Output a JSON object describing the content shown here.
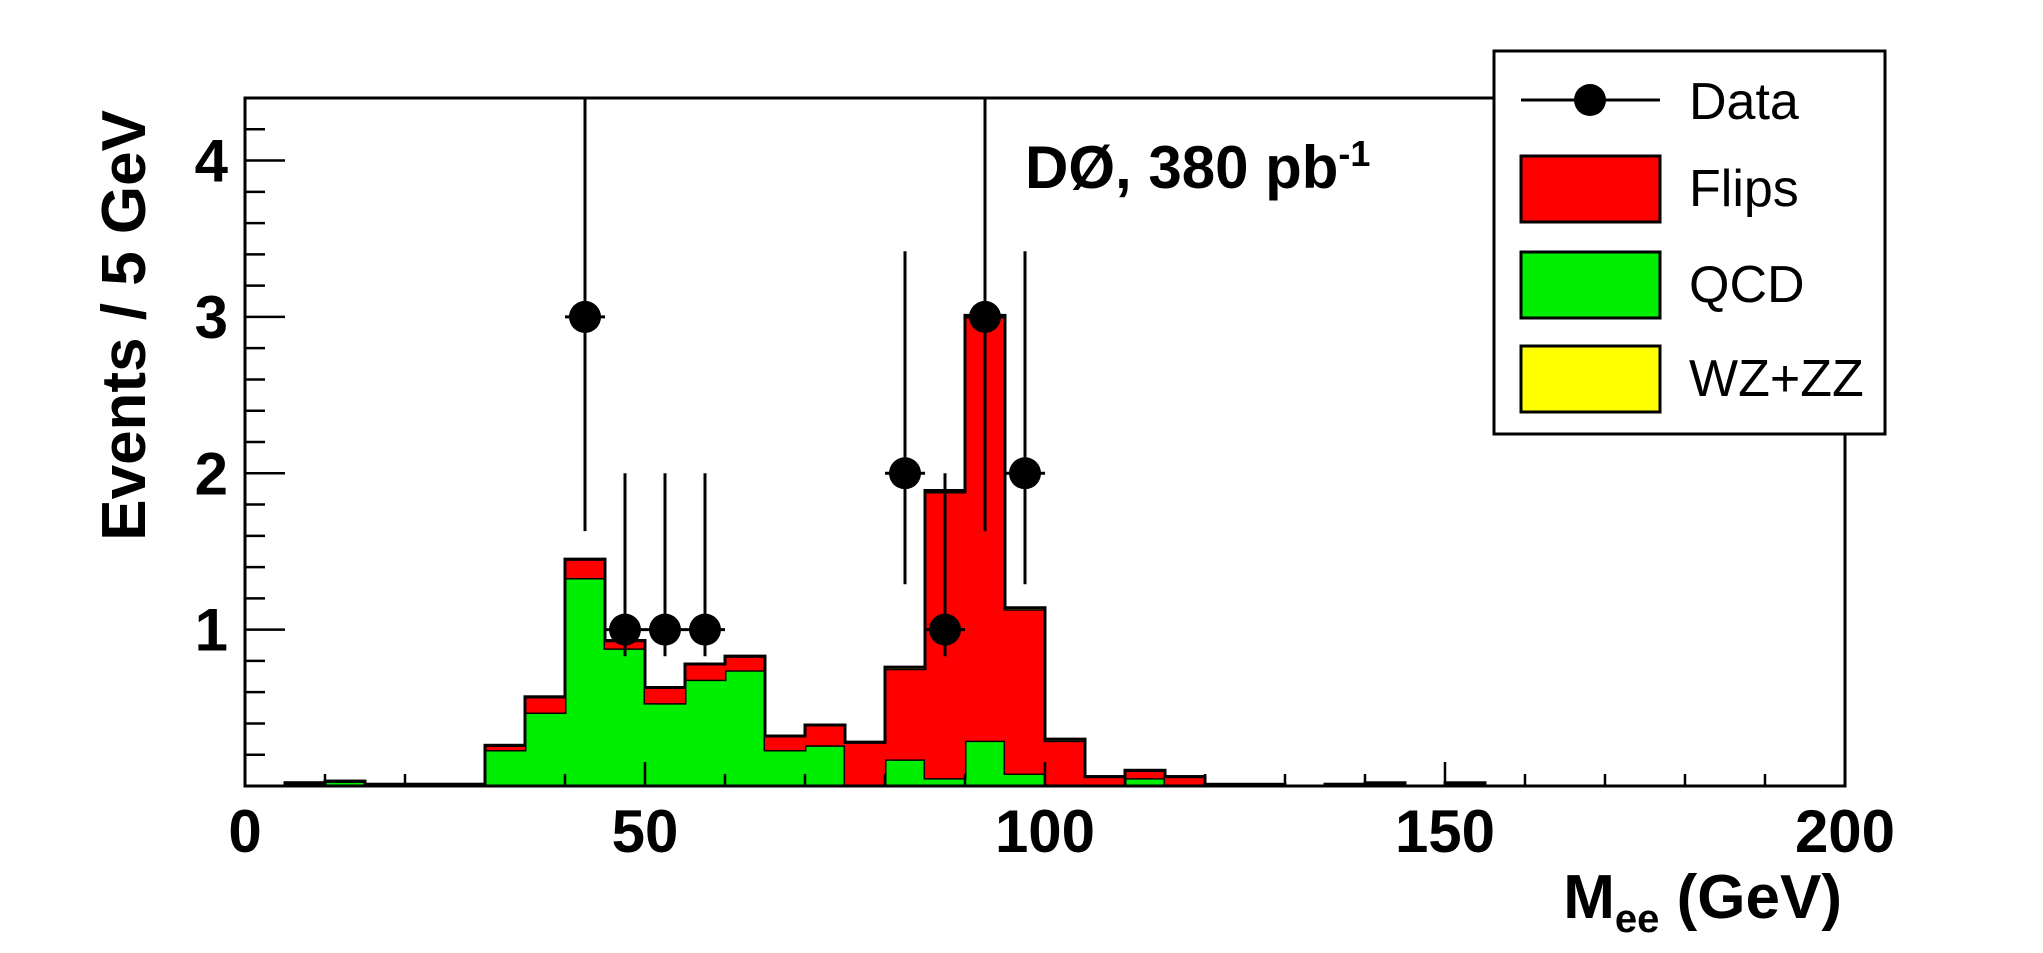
{
  "chart_data": {
    "type": "bar",
    "title": "",
    "annotation": {
      "main": "DØ, 380 pb",
      "superscript": "-1"
    },
    "xlabel": {
      "main": "M",
      "subscript": "ee",
      "rest": " (GeV)"
    },
    "ylabel": "Events / 5 GeV",
    "xlim": [
      0,
      200
    ],
    "ylim": [
      0,
      4.4
    ],
    "bin_width": 5,
    "x_ticks": [
      "0",
      "50",
      "100",
      "150",
      "200"
    ],
    "y_ticks": [
      "1",
      "2",
      "3",
      "4"
    ],
    "colors": {
      "flips": "#ff0000",
      "qcd": "#00ee00",
      "wzzz": "#ffff00",
      "data": "#000000",
      "frame": "#000000"
    },
    "legend": {
      "position": "top-right",
      "entries": [
        {
          "label": "Data",
          "style": "marker"
        },
        {
          "label": "Flips",
          "style": "fill",
          "color": "#ff0000"
        },
        {
          "label": "QCD",
          "style": "fill",
          "color": "#00ee00"
        },
        {
          "label": "WZ+ZZ",
          "style": "fill",
          "color": "#ffff00"
        }
      ]
    },
    "bin_low_edges": [
      0,
      5,
      10,
      15,
      20,
      25,
      30,
      35,
      40,
      45,
      50,
      55,
      60,
      65,
      70,
      75,
      80,
      85,
      90,
      95,
      100,
      105,
      110,
      115,
      120,
      125,
      130,
      135,
      140,
      145,
      150,
      155,
      160,
      165,
      170,
      175,
      180,
      185,
      190,
      195
    ],
    "series": [
      {
        "name": "QCD",
        "values": [
          0,
          0.02,
          0.03,
          0.01,
          0.01,
          0.01,
          0.23,
          0.47,
          1.33,
          0.88,
          0.53,
          0.68,
          0.74,
          0.23,
          0.26,
          0.01,
          0.17,
          0.05,
          0.29,
          0.08,
          0.01,
          0,
          0.05,
          0.01,
          0,
          0,
          0,
          0.01,
          0,
          0,
          0,
          0,
          0,
          0,
          0,
          0,
          0,
          0,
          0,
          0
        ]
      },
      {
        "name": "Flips",
        "values": [
          0,
          0,
          0,
          0,
          0,
          0,
          0.03,
          0.1,
          0.12,
          0.05,
          0.1,
          0.1,
          0.09,
          0.09,
          0.13,
          0.27,
          0.58,
          1.83,
          2.71,
          1.05,
          0.28,
          0.06,
          0.05,
          0.05,
          0.01,
          0.01,
          0,
          0,
          0.02,
          0,
          0.02,
          0,
          0,
          0,
          0,
          0,
          0,
          0,
          0,
          0
        ]
      },
      {
        "name": "WZ+ZZ",
        "values": [
          0,
          0,
          0,
          0,
          0,
          0,
          0,
          0,
          0,
          0,
          0,
          0,
          0,
          0,
          0,
          0,
          0.01,
          0.01,
          0.01,
          0.01,
          0.01,
          0,
          0,
          0,
          0,
          0,
          0,
          0,
          0,
          0,
          0,
          0,
          0,
          0,
          0,
          0,
          0,
          0,
          0,
          0
        ]
      }
    ],
    "data_points": [
      {
        "x": 42.5,
        "y": 3,
        "err_low": 1.63,
        "err_high": 4.4
      },
      {
        "x": 47.5,
        "y": 1,
        "err_low": 0.83,
        "err_high": 2.0
      },
      {
        "x": 52.5,
        "y": 1,
        "err_low": 0.83,
        "err_high": 2.0
      },
      {
        "x": 57.5,
        "y": 1,
        "err_low": 0.83,
        "err_high": 2.0
      },
      {
        "x": 82.5,
        "y": 2,
        "err_low": 1.29,
        "err_high": 3.42
      },
      {
        "x": 87.5,
        "y": 1,
        "err_low": 0.83,
        "err_high": 2.0
      },
      {
        "x": 92.5,
        "y": 3,
        "err_low": 1.63,
        "err_high": 4.4
      },
      {
        "x": 97.5,
        "y": 2,
        "err_low": 1.29,
        "err_high": 3.42
      }
    ]
  }
}
